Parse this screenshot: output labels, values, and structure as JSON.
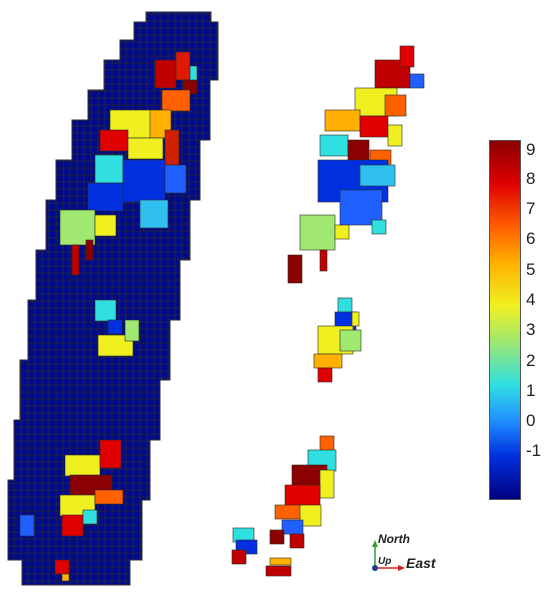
{
  "colorbar": {
    "ticks": [
      "9",
      "8",
      "7",
      "6",
      "5",
      "4",
      "3",
      "2",
      "1",
      "0",
      "-1"
    ],
    "min": -1,
    "max": 9,
    "colors": [
      "#00007f",
      "#0030e0",
      "#2090ff",
      "#30e0e0",
      "#a0e870",
      "#f0f020",
      "#ffb000",
      "#ff6000",
      "#e00000",
      "#8b0000"
    ]
  },
  "compass": {
    "north_label": "North",
    "up_label": "Up",
    "east_label": "East",
    "north_color": "#2ea02e",
    "east_color": "#d62020",
    "up_color": "#1f3a8f"
  },
  "grid": {
    "background_color": "#000a8c",
    "line_color": "#2a2a2a"
  }
}
